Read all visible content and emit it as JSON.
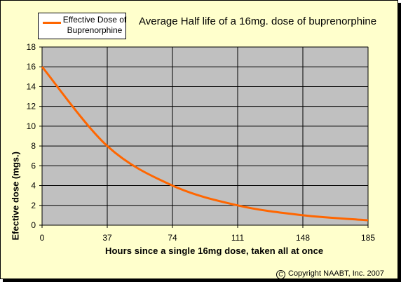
{
  "chart_data": {
    "type": "line",
    "title": "Average Half life of a 16mg. dose of buprenorphine",
    "xlabel": "Hours since a single 16mg dose, taken all at once",
    "ylabel": "Efective dose (mgs.)",
    "xlim": [
      0,
      185
    ],
    "ylim": [
      0,
      18
    ],
    "xticks": [
      0,
      37,
      74,
      111,
      148,
      185
    ],
    "yticks": [
      0,
      2,
      4,
      6,
      8,
      10,
      12,
      14,
      16,
      18
    ],
    "grid": true,
    "legend_position": "top-left",
    "series": [
      {
        "name": "Effective Dose of Buprenorphine",
        "color": "#ff6600",
        "x": [
          0,
          37,
          74,
          111,
          148,
          185
        ],
        "y": [
          16,
          8,
          4,
          2,
          1,
          0.5
        ]
      }
    ]
  },
  "copyright": "Copyright NAABT, Inc. 2007",
  "copyright_symbol": "C",
  "colors": {
    "background": "#ffffcc",
    "plot_area": "#c0c0c0",
    "series": "#ff6600"
  }
}
